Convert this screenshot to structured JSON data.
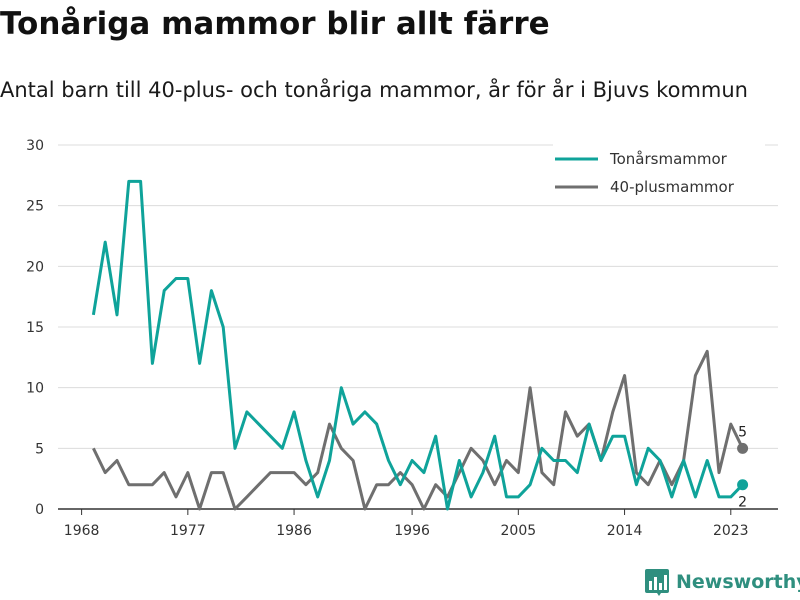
{
  "title": "Tonåriga mammor blir allt färre",
  "subtitle": "Antal barn till 40-plus- och tonåriga mammor, år för år i Bjuvs kommun",
  "brand": {
    "name": "Newsworthy",
    "color": "#2f8f7f",
    "icon": "bar-chart-logo-icon"
  },
  "chart_data": {
    "type": "line",
    "title": "Tonåriga mammor blir allt färre",
    "subtitle": "Antal barn till 40-plus- och tonåriga mammor, år för år i Bjuvs kommun",
    "xlabel": "",
    "ylabel": "",
    "ylim": [
      0,
      30
    ],
    "yticks": [
      0,
      5,
      10,
      15,
      20,
      25,
      30
    ],
    "xticks": [
      1968,
      1977,
      1986,
      1996,
      2005,
      2014,
      2023
    ],
    "grid": true,
    "legend_position": "top-right",
    "x": [
      1969,
      1970,
      1971,
      1972,
      1973,
      1974,
      1975,
      1976,
      1977,
      1978,
      1979,
      1980,
      1981,
      1982,
      1983,
      1984,
      1985,
      1986,
      1987,
      1988,
      1989,
      1990,
      1991,
      1992,
      1993,
      1994,
      1995,
      1996,
      1997,
      1998,
      1999,
      2000,
      2001,
      2002,
      2003,
      2004,
      2005,
      2006,
      2007,
      2008,
      2009,
      2010,
      2011,
      2012,
      2013,
      2014,
      2015,
      2016,
      2017,
      2018,
      2019,
      2020,
      2021,
      2022,
      2023,
      2024
    ],
    "series": [
      {
        "name": "Tonårsmammor",
        "color": "#0fa39a",
        "values": [
          16,
          22,
          16,
          27,
          27,
          12,
          18,
          19,
          19,
          12,
          18,
          15,
          5,
          8,
          7,
          6,
          5,
          8,
          4,
          1,
          4,
          10,
          7,
          8,
          7,
          4,
          2,
          4,
          3,
          6,
          0,
          4,
          1,
          3,
          6,
          1,
          1,
          2,
          5,
          4,
          4,
          3,
          7,
          4,
          6,
          6,
          2,
          5,
          4,
          1,
          4,
          1,
          4,
          1,
          1,
          2
        ],
        "end_label": "2"
      },
      {
        "name": "40-plusmammor",
        "color": "#6f6f6f",
        "values": [
          5,
          3,
          4,
          2,
          2,
          2,
          3,
          1,
          3,
          0,
          3,
          3,
          0,
          1,
          2,
          3,
          3,
          3,
          2,
          3,
          7,
          5,
          4,
          0,
          2,
          2,
          3,
          2,
          0,
          2,
          1,
          3,
          5,
          4,
          2,
          4,
          3,
          10,
          3,
          2,
          8,
          6,
          7,
          4,
          8,
          11,
          3,
          2,
          4,
          2,
          4,
          11,
          13,
          3,
          7,
          5
        ],
        "end_label": "5"
      }
    ]
  }
}
